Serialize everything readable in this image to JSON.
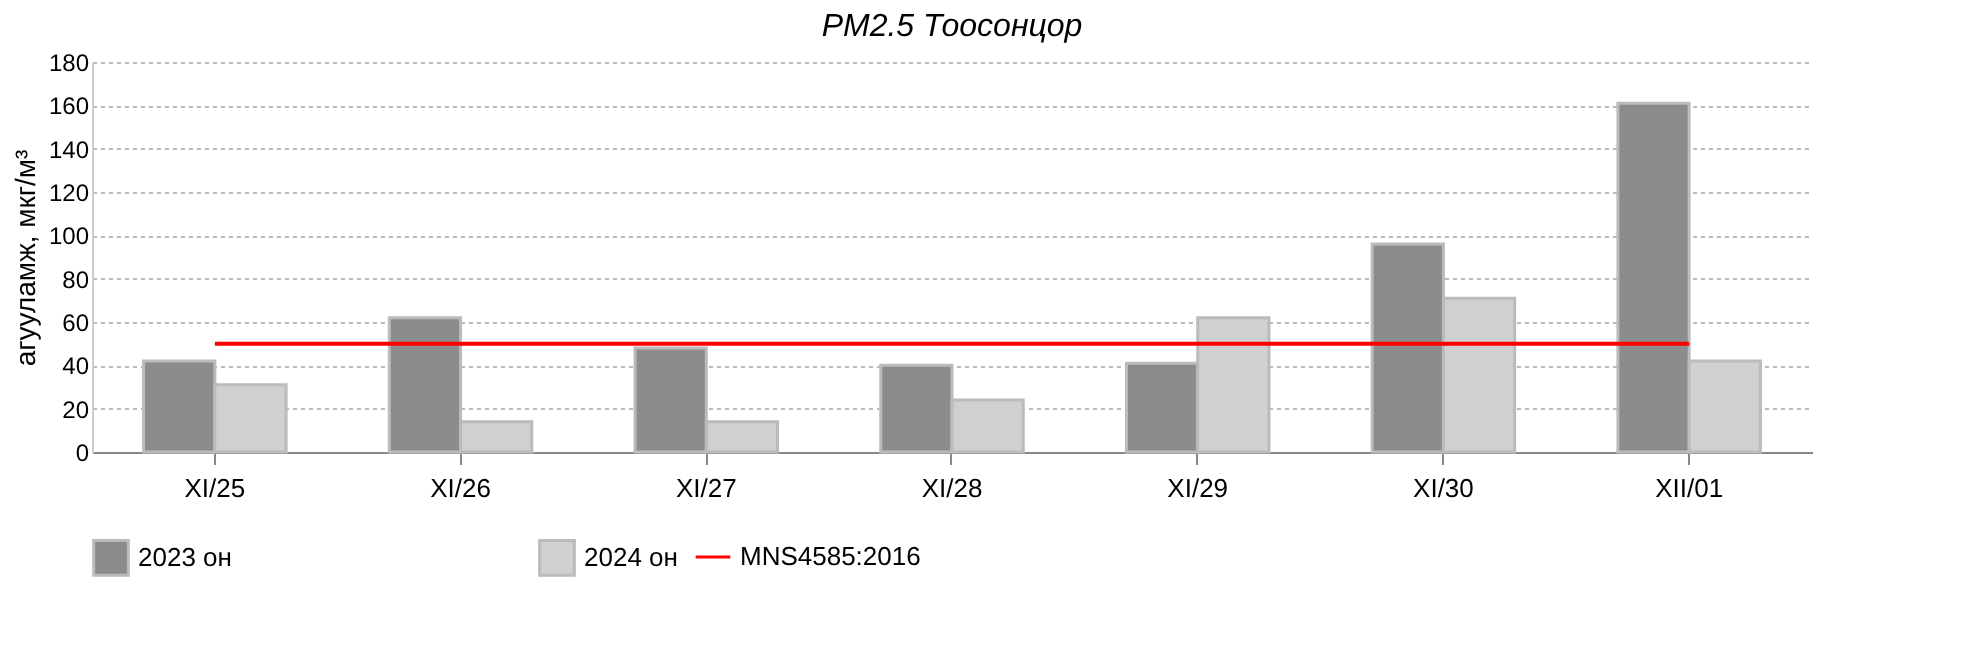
{
  "chart_data": {
    "type": "bar",
    "title": "PM2.5 Тоосонцор",
    "ylabel": "агууламж, мкг/м³",
    "categories": [
      "XI/25",
      "XI/26",
      "XI/27",
      "XI/28",
      "XI/29",
      "XI/30",
      "XII/01"
    ],
    "series": [
      {
        "name": "2023 он",
        "color": "#8c8c8c",
        "values": [
          42,
          62,
          48,
          40,
          41,
          96,
          161
        ]
      },
      {
        "name": "2024 он",
        "color": "#d0d0d0",
        "values": [
          31,
          14,
          14,
          24,
          62,
          71,
          42
        ]
      },
      {
        "name": "MNS4585:2016",
        "type": "line",
        "color": "#ff0000",
        "values": [
          50,
          50,
          50,
          50,
          50,
          50,
          50
        ]
      }
    ],
    "ylim": [
      0,
      180
    ],
    "yticks": [
      0,
      20,
      40,
      60,
      80,
      100,
      120,
      140,
      160,
      180
    ],
    "grid": "y",
    "legend": "bottom",
    "marker": "none",
    "line_style": "solid"
  }
}
